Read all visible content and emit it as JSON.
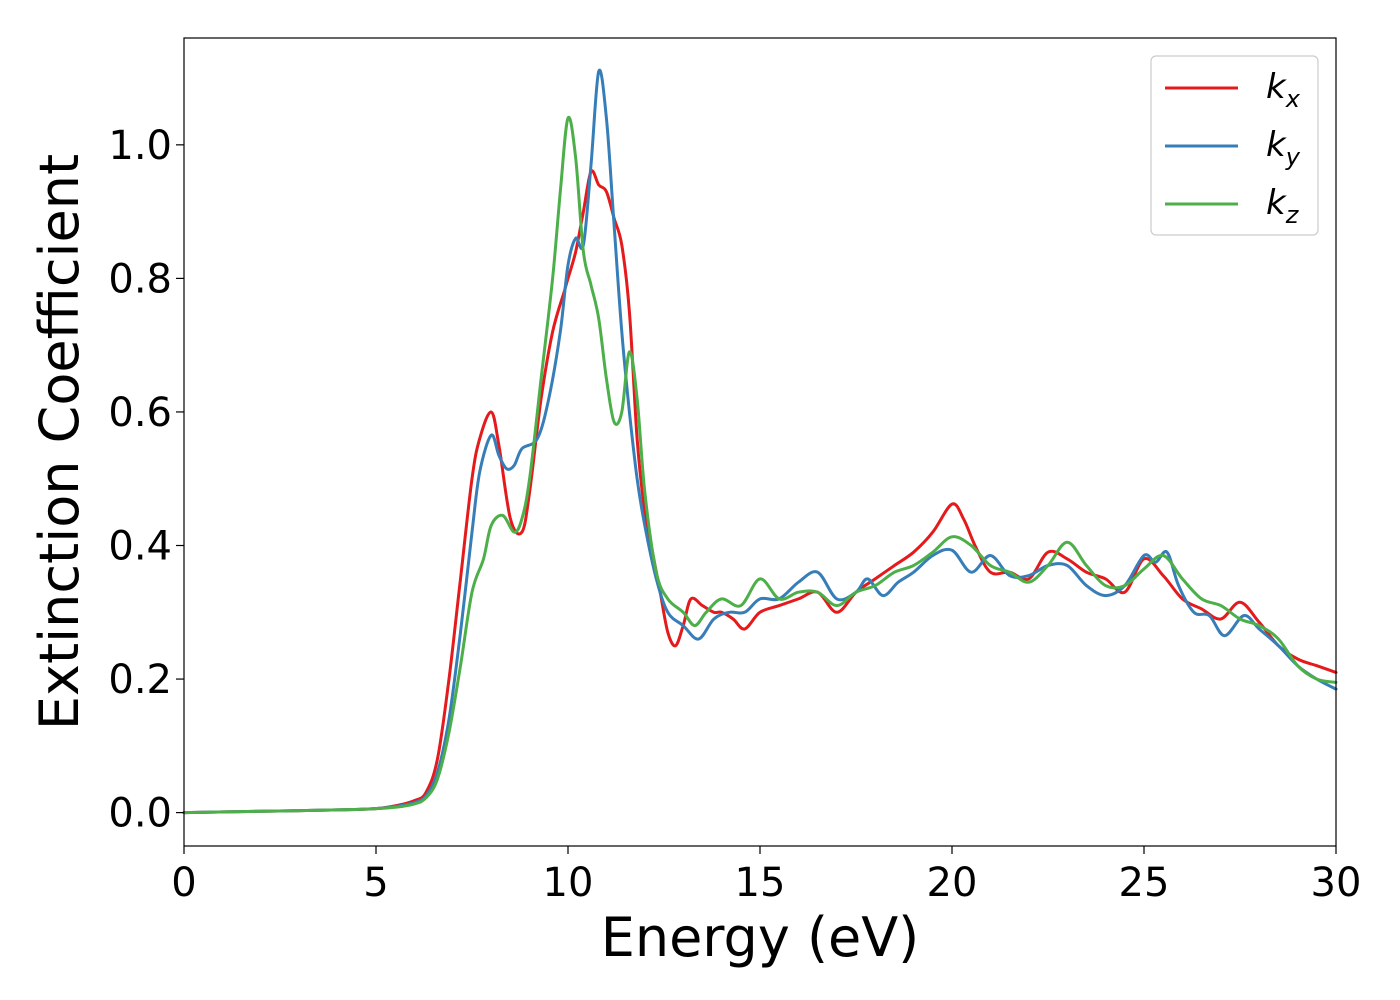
{
  "chart_data": {
    "type": "line",
    "xlabel": "Energy (eV)",
    "ylabel": "Extinction Coefficient",
    "xlim": [
      0,
      30
    ],
    "ylim": [
      -0.05,
      1.16
    ],
    "xticks": [
      0,
      5,
      10,
      15,
      20,
      25,
      30
    ],
    "yticks": [
      "0.0",
      "0.2",
      "0.4",
      "0.6",
      "0.8",
      "1.0"
    ],
    "grid": false,
    "legend_position": "top-right",
    "series": [
      {
        "name": "k",
        "subscript": "x",
        "color": "#e41a1c",
        "points": [
          [
            0,
            0
          ],
          [
            2,
            0.002
          ],
          [
            4,
            0.004
          ],
          [
            5,
            0.006
          ],
          [
            5.5,
            0.01
          ],
          [
            6,
            0.018
          ],
          [
            6.3,
            0.03
          ],
          [
            6.6,
            0.08
          ],
          [
            6.9,
            0.2
          ],
          [
            7.2,
            0.35
          ],
          [
            7.5,
            0.5
          ],
          [
            7.7,
            0.56
          ],
          [
            8.0,
            0.6
          ],
          [
            8.2,
            0.55
          ],
          [
            8.5,
            0.44
          ],
          [
            8.8,
            0.42
          ],
          [
            9.0,
            0.48
          ],
          [
            9.3,
            0.62
          ],
          [
            9.6,
            0.72
          ],
          [
            9.9,
            0.78
          ],
          [
            10.0,
            0.8
          ],
          [
            10.2,
            0.84
          ],
          [
            10.4,
            0.9
          ],
          [
            10.6,
            0.96
          ],
          [
            10.8,
            0.94
          ],
          [
            11.0,
            0.93
          ],
          [
            11.2,
            0.89
          ],
          [
            11.4,
            0.85
          ],
          [
            11.6,
            0.75
          ],
          [
            11.8,
            0.56
          ],
          [
            12.0,
            0.45
          ],
          [
            12.2,
            0.39
          ],
          [
            12.4,
            0.33
          ],
          [
            12.6,
            0.27
          ],
          [
            12.8,
            0.25
          ],
          [
            13.0,
            0.28
          ],
          [
            13.2,
            0.32
          ],
          [
            13.5,
            0.31
          ],
          [
            13.8,
            0.3
          ],
          [
            14.0,
            0.3
          ],
          [
            14.3,
            0.29
          ],
          [
            14.6,
            0.275
          ],
          [
            15.0,
            0.3
          ],
          [
            15.5,
            0.31
          ],
          [
            16.0,
            0.32
          ],
          [
            16.5,
            0.33
          ],
          [
            17.0,
            0.3
          ],
          [
            17.5,
            0.33
          ],
          [
            18.0,
            0.35
          ],
          [
            18.5,
            0.37
          ],
          [
            19.0,
            0.39
          ],
          [
            19.5,
            0.42
          ],
          [
            20.0,
            0.462
          ],
          [
            20.3,
            0.44
          ],
          [
            20.6,
            0.4
          ],
          [
            21.0,
            0.36
          ],
          [
            21.5,
            0.36
          ],
          [
            22.0,
            0.35
          ],
          [
            22.5,
            0.39
          ],
          [
            23.0,
            0.38
          ],
          [
            23.5,
            0.36
          ],
          [
            24.0,
            0.35
          ],
          [
            24.5,
            0.33
          ],
          [
            25.0,
            0.38
          ],
          [
            25.5,
            0.355
          ],
          [
            26.0,
            0.32
          ],
          [
            26.5,
            0.305
          ],
          [
            27.0,
            0.29
          ],
          [
            27.5,
            0.315
          ],
          [
            28.0,
            0.285
          ],
          [
            28.5,
            0.25
          ],
          [
            29.0,
            0.23
          ],
          [
            29.5,
            0.22
          ],
          [
            30,
            0.21
          ]
        ]
      },
      {
        "name": "k",
        "subscript": "y",
        "color": "#377eb8",
        "points": [
          [
            0,
            0
          ],
          [
            2,
            0.002
          ],
          [
            4,
            0.004
          ],
          [
            5,
            0.006
          ],
          [
            5.5,
            0.009
          ],
          [
            6,
            0.015
          ],
          [
            6.3,
            0.025
          ],
          [
            6.6,
            0.06
          ],
          [
            6.9,
            0.14
          ],
          [
            7.2,
            0.27
          ],
          [
            7.5,
            0.42
          ],
          [
            7.7,
            0.51
          ],
          [
            8.0,
            0.565
          ],
          [
            8.2,
            0.535
          ],
          [
            8.4,
            0.515
          ],
          [
            8.6,
            0.52
          ],
          [
            8.8,
            0.545
          ],
          [
            9.2,
            0.56
          ],
          [
            9.5,
            0.62
          ],
          [
            9.8,
            0.72
          ],
          [
            10.0,
            0.82
          ],
          [
            10.2,
            0.86
          ],
          [
            10.4,
            0.85
          ],
          [
            10.6,
            0.97
          ],
          [
            10.8,
            1.11
          ],
          [
            11.0,
            1.04
          ],
          [
            11.2,
            0.88
          ],
          [
            11.4,
            0.72
          ],
          [
            11.6,
            0.6
          ],
          [
            11.8,
            0.5
          ],
          [
            12.0,
            0.43
          ],
          [
            12.3,
            0.35
          ],
          [
            12.6,
            0.3
          ],
          [
            13.0,
            0.28
          ],
          [
            13.4,
            0.26
          ],
          [
            13.8,
            0.29
          ],
          [
            14.2,
            0.3
          ],
          [
            14.6,
            0.3
          ],
          [
            15.0,
            0.32
          ],
          [
            15.5,
            0.32
          ],
          [
            16.0,
            0.345
          ],
          [
            16.5,
            0.36
          ],
          [
            17.0,
            0.32
          ],
          [
            17.5,
            0.33
          ],
          [
            17.8,
            0.35
          ],
          [
            18.2,
            0.325
          ],
          [
            18.6,
            0.345
          ],
          [
            19.0,
            0.36
          ],
          [
            19.5,
            0.385
          ],
          [
            20.0,
            0.393
          ],
          [
            20.5,
            0.36
          ],
          [
            21.0,
            0.385
          ],
          [
            21.5,
            0.355
          ],
          [
            22.0,
            0.355
          ],
          [
            22.5,
            0.37
          ],
          [
            23.0,
            0.37
          ],
          [
            23.5,
            0.34
          ],
          [
            24.0,
            0.325
          ],
          [
            24.5,
            0.34
          ],
          [
            25.0,
            0.385
          ],
          [
            25.3,
            0.375
          ],
          [
            25.6,
            0.39
          ],
          [
            25.9,
            0.34
          ],
          [
            26.3,
            0.3
          ],
          [
            26.7,
            0.295
          ],
          [
            27.1,
            0.265
          ],
          [
            27.6,
            0.295
          ],
          [
            28.0,
            0.275
          ],
          [
            28.5,
            0.25
          ],
          [
            29.0,
            0.22
          ],
          [
            29.5,
            0.2
          ],
          [
            30,
            0.185
          ]
        ]
      },
      {
        "name": "k",
        "subscript": "z",
        "color": "#4daf4a",
        "points": [
          [
            0,
            0
          ],
          [
            2,
            0.002
          ],
          [
            4,
            0.004
          ],
          [
            5,
            0.006
          ],
          [
            5.5,
            0.008
          ],
          [
            6,
            0.013
          ],
          [
            6.3,
            0.022
          ],
          [
            6.6,
            0.05
          ],
          [
            6.9,
            0.12
          ],
          [
            7.2,
            0.22
          ],
          [
            7.5,
            0.33
          ],
          [
            7.8,
            0.38
          ],
          [
            8.0,
            0.43
          ],
          [
            8.3,
            0.445
          ],
          [
            8.6,
            0.42
          ],
          [
            8.8,
            0.44
          ],
          [
            9.0,
            0.5
          ],
          [
            9.3,
            0.65
          ],
          [
            9.6,
            0.8
          ],
          [
            9.8,
            0.93
          ],
          [
            10.0,
            1.04
          ],
          [
            10.2,
            0.98
          ],
          [
            10.4,
            0.84
          ],
          [
            10.6,
            0.79
          ],
          [
            10.8,
            0.74
          ],
          [
            11.0,
            0.65
          ],
          [
            11.2,
            0.585
          ],
          [
            11.4,
            0.6
          ],
          [
            11.6,
            0.69
          ],
          [
            11.8,
            0.62
          ],
          [
            12.0,
            0.48
          ],
          [
            12.3,
            0.36
          ],
          [
            12.6,
            0.32
          ],
          [
            13.0,
            0.3
          ],
          [
            13.3,
            0.28
          ],
          [
            13.6,
            0.3
          ],
          [
            14.0,
            0.32
          ],
          [
            14.5,
            0.31
          ],
          [
            15.0,
            0.35
          ],
          [
            15.5,
            0.32
          ],
          [
            16.0,
            0.33
          ],
          [
            16.5,
            0.33
          ],
          [
            17.0,
            0.31
          ],
          [
            17.5,
            0.33
          ],
          [
            18.0,
            0.34
          ],
          [
            18.5,
            0.36
          ],
          [
            19.0,
            0.37
          ],
          [
            19.5,
            0.39
          ],
          [
            20.0,
            0.413
          ],
          [
            20.5,
            0.4
          ],
          [
            21.0,
            0.37
          ],
          [
            21.5,
            0.36
          ],
          [
            22.0,
            0.345
          ],
          [
            22.5,
            0.37
          ],
          [
            23.0,
            0.405
          ],
          [
            23.5,
            0.37
          ],
          [
            24.0,
            0.34
          ],
          [
            24.5,
            0.34
          ],
          [
            25.0,
            0.365
          ],
          [
            25.5,
            0.385
          ],
          [
            26.0,
            0.35
          ],
          [
            26.5,
            0.32
          ],
          [
            27.0,
            0.31
          ],
          [
            27.5,
            0.29
          ],
          [
            28.0,
            0.28
          ],
          [
            28.5,
            0.26
          ],
          [
            29.0,
            0.22
          ],
          [
            29.5,
            0.2
          ],
          [
            30,
            0.195
          ]
        ]
      }
    ]
  }
}
